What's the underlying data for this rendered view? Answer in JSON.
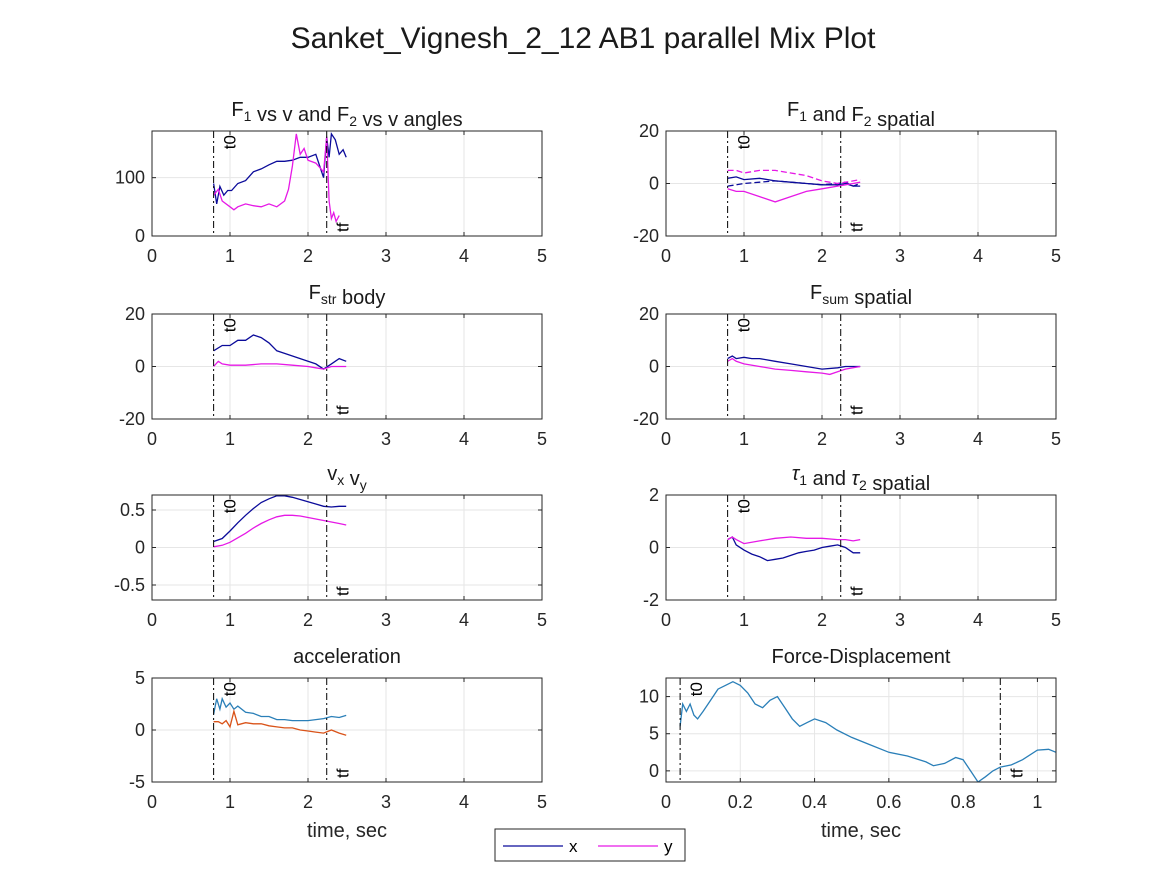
{
  "figure": {
    "title": "Sanket_Vignesh_2_12 AB1 parallel Mix Plot",
    "legend": {
      "placement": "bottom-center",
      "entries": [
        {
          "label": "x",
          "color": "#0b0b9a"
        },
        {
          "label": "y",
          "color": "#e619e6"
        }
      ]
    }
  },
  "chart_data": [
    {
      "type": "line",
      "title_parts": [
        {
          "t": "F"
        },
        {
          "t": "1",
          "sub": true
        },
        {
          "t": " vs v and F"
        },
        {
          "t": "2",
          "sub": true
        },
        {
          "t": " vs v angles"
        }
      ],
      "xlim": [
        0,
        5
      ],
      "ylim": [
        0,
        180
      ],
      "xticks": [
        0,
        1,
        2,
        3,
        4,
        5
      ],
      "yticks": [
        0,
        100
      ],
      "xlabel": "",
      "grid": true,
      "vlines": [
        {
          "x": 0.79,
          "label": "t0",
          "pos": "top"
        },
        {
          "x": 2.24,
          "label": "tf",
          "pos": "bottom"
        }
      ],
      "series": [
        {
          "name": "x",
          "color": "#0b0b9a",
          "x": [
            0.79,
            0.83,
            0.87,
            0.92,
            0.97,
            1.02,
            1.1,
            1.2,
            1.3,
            1.4,
            1.5,
            1.6,
            1.7,
            1.8,
            1.9,
            2.0,
            2.1,
            2.15,
            2.2,
            2.24,
            2.27,
            2.3,
            2.35,
            2.4,
            2.45,
            2.49
          ],
          "y": [
            90,
            55,
            85,
            70,
            78,
            78,
            90,
            95,
            110,
            115,
            122,
            128,
            128,
            130,
            135,
            135,
            140,
            120,
            100,
            170,
            135,
            175,
            165,
            140,
            148,
            135
          ]
        },
        {
          "name": "y",
          "color": "#e619e6",
          "x": [
            0.79,
            0.85,
            0.9,
            1.0,
            1.05,
            1.1,
            1.2,
            1.3,
            1.4,
            1.5,
            1.6,
            1.7,
            1.75,
            1.8,
            1.85,
            1.9,
            1.95,
            2.0,
            2.1,
            2.2,
            2.24,
            2.27,
            2.3,
            2.33,
            2.36,
            2.4
          ],
          "y": [
            70,
            80,
            60,
            50,
            45,
            50,
            55,
            52,
            50,
            55,
            50,
            60,
            80,
            120,
            175,
            140,
            150,
            130,
            125,
            110,
            170,
            60,
            30,
            40,
            25,
            35
          ]
        }
      ]
    },
    {
      "type": "line",
      "title_parts": [
        {
          "t": "F"
        },
        {
          "t": "1",
          "sub": true
        },
        {
          "t": " and F"
        },
        {
          "t": "2",
          "sub": true
        },
        {
          "t": " spatial"
        }
      ],
      "xlim": [
        0,
        5
      ],
      "ylim": [
        -20,
        20
      ],
      "xticks": [
        0,
        1,
        2,
        3,
        4,
        5
      ],
      "yticks": [
        -20,
        0,
        20
      ],
      "xlabel": "",
      "grid": true,
      "vlines": [
        {
          "x": 0.79,
          "label": "t0",
          "pos": "top"
        },
        {
          "x": 2.24,
          "label": "tf",
          "pos": "bottom"
        }
      ],
      "series": [
        {
          "name": "x",
          "color": "#0b0b9a",
          "dash": false,
          "x": [
            0.79,
            0.9,
            1.0,
            1.2,
            1.4,
            1.6,
            1.8,
            2.0,
            2.2,
            2.3,
            2.4,
            2.49
          ],
          "y": [
            2,
            2.5,
            1.5,
            2,
            1,
            0.5,
            0,
            -0.5,
            -0.5,
            0,
            -1,
            -1
          ]
        },
        {
          "name": "",
          "color": "#0b0b9a",
          "dash": true,
          "x": [
            0.79,
            0.9,
            1.0,
            1.2,
            1.4,
            1.6,
            1.8,
            2.0,
            2.2,
            2.3,
            2.4,
            2.49
          ],
          "y": [
            -1,
            -0.5,
            0,
            0.5,
            1,
            0.5,
            0,
            -0.5,
            0,
            0.5,
            -1,
            0
          ]
        },
        {
          "name": "y",
          "color": "#e619e6",
          "dash": false,
          "x": [
            0.79,
            0.9,
            1.0,
            1.2,
            1.4,
            1.6,
            1.8,
            2.0,
            2.2,
            2.3,
            2.4,
            2.49
          ],
          "y": [
            -2,
            -3,
            -3,
            -5,
            -7,
            -5,
            -3,
            -2,
            -1,
            -0.5,
            0,
            0.5
          ]
        },
        {
          "name": "",
          "color": "#e619e6",
          "dash": true,
          "x": [
            0.79,
            0.9,
            1.0,
            1.2,
            1.4,
            1.6,
            1.8,
            2.0,
            2.2,
            2.3,
            2.4,
            2.49
          ],
          "y": [
            5,
            5,
            4,
            5,
            5,
            4,
            3,
            1,
            0,
            0.5,
            1,
            1.5
          ]
        }
      ]
    },
    {
      "type": "line",
      "title_parts": [
        {
          "t": "F"
        },
        {
          "t": "str",
          "sub": true
        },
        {
          "t": " body"
        }
      ],
      "xlim": [
        0,
        5
      ],
      "ylim": [
        -20,
        20
      ],
      "xticks": [
        0,
        1,
        2,
        3,
        4,
        5
      ],
      "yticks": [
        -20,
        0,
        20
      ],
      "xlabel": "",
      "grid": true,
      "vlines": [
        {
          "x": 0.79,
          "label": "t0",
          "pos": "top"
        },
        {
          "x": 2.24,
          "label": "tf",
          "pos": "bottom"
        }
      ],
      "series": [
        {
          "name": "x",
          "color": "#0b0b9a",
          "x": [
            0.79,
            0.9,
            1.0,
            1.1,
            1.2,
            1.3,
            1.4,
            1.5,
            1.6,
            1.7,
            1.8,
            1.9,
            2.0,
            2.1,
            2.2,
            2.3,
            2.4,
            2.49
          ],
          "y": [
            6,
            8,
            8,
            10,
            10,
            12,
            11,
            9,
            6,
            5,
            4,
            3,
            2,
            1,
            -1,
            1,
            3,
            2
          ]
        },
        {
          "name": "y",
          "color": "#e619e6",
          "x": [
            0.79,
            0.85,
            0.9,
            1.0,
            1.2,
            1.4,
            1.6,
            1.8,
            2.0,
            2.1,
            2.2,
            2.3,
            2.49
          ],
          "y": [
            0,
            2,
            1,
            0.5,
            0.5,
            1,
            1,
            0.5,
            0,
            -0.5,
            -1,
            0,
            0
          ]
        }
      ]
    },
    {
      "type": "line",
      "title_parts": [
        {
          "t": "F"
        },
        {
          "t": "sum",
          "sub": true
        },
        {
          "t": " spatial"
        }
      ],
      "xlim": [
        0,
        5
      ],
      "ylim": [
        -20,
        20
      ],
      "xticks": [
        0,
        1,
        2,
        3,
        4,
        5
      ],
      "yticks": [
        -20,
        0,
        20
      ],
      "xlabel": "",
      "grid": true,
      "vlines": [
        {
          "x": 0.79,
          "label": "t0",
          "pos": "top"
        },
        {
          "x": 2.24,
          "label": "tf",
          "pos": "bottom"
        }
      ],
      "series": [
        {
          "name": "x",
          "color": "#0b0b9a",
          "x": [
            0.79,
            0.85,
            0.9,
            1.0,
            1.1,
            1.2,
            1.4,
            1.6,
            1.8,
            2.0,
            2.2,
            2.3,
            2.49
          ],
          "y": [
            3,
            4,
            3,
            3.5,
            3,
            3,
            2,
            1,
            0,
            -1,
            -0.5,
            0,
            0
          ]
        },
        {
          "name": "y",
          "color": "#e619e6",
          "x": [
            0.79,
            0.85,
            0.9,
            1.0,
            1.2,
            1.4,
            1.6,
            1.8,
            2.0,
            2.1,
            2.2,
            2.3,
            2.49
          ],
          "y": [
            2,
            3,
            2,
            1,
            0,
            -1,
            -1.5,
            -2,
            -2.5,
            -3,
            -2,
            -1,
            0
          ]
        }
      ]
    },
    {
      "type": "line",
      "title_parts": [
        {
          "t": "v"
        },
        {
          "t": "x",
          "sub": true
        },
        {
          "t": " v"
        },
        {
          "t": "y",
          "sub": true
        }
      ],
      "xlim": [
        0,
        5
      ],
      "ylim": [
        -0.7,
        0.7
      ],
      "xticks": [
        0,
        1,
        2,
        3,
        4,
        5
      ],
      "yticks": [
        -0.5,
        0,
        0.5
      ],
      "ytickLabels": [
        "-0.5",
        "0",
        "0.5"
      ],
      "xlabel": "",
      "grid": true,
      "vlines": [
        {
          "x": 0.79,
          "label": "t0",
          "pos": "top"
        },
        {
          "x": 2.24,
          "label": "tf",
          "pos": "bottom"
        }
      ],
      "series": [
        {
          "name": "x",
          "color": "#0b0b9a",
          "x": [
            0.79,
            0.9,
            1.0,
            1.1,
            1.2,
            1.3,
            1.4,
            1.5,
            1.6,
            1.7,
            1.8,
            1.9,
            2.0,
            2.1,
            2.2,
            2.3,
            2.4,
            2.49
          ],
          "y": [
            0.08,
            0.12,
            0.22,
            0.33,
            0.43,
            0.52,
            0.6,
            0.65,
            0.69,
            0.69,
            0.67,
            0.64,
            0.61,
            0.58,
            0.55,
            0.54,
            0.55,
            0.55
          ]
        },
        {
          "name": "y",
          "color": "#e619e6",
          "x": [
            0.79,
            0.9,
            1.0,
            1.1,
            1.2,
            1.3,
            1.4,
            1.5,
            1.6,
            1.7,
            1.8,
            1.9,
            2.0,
            2.1,
            2.2,
            2.3,
            2.4,
            2.49
          ],
          "y": [
            0.01,
            0.03,
            0.07,
            0.13,
            0.19,
            0.26,
            0.32,
            0.37,
            0.41,
            0.43,
            0.43,
            0.42,
            0.4,
            0.38,
            0.36,
            0.34,
            0.32,
            0.3
          ]
        }
      ]
    },
    {
      "type": "line",
      "title_parts": [
        {
          "t": "τ",
          "italic": true
        },
        {
          "t": "1",
          "sub": true
        },
        {
          "t": " and "
        },
        {
          "t": "τ",
          "italic": true
        },
        {
          "t": "2",
          "sub": true
        },
        {
          "t": " spatial"
        }
      ],
      "xlim": [
        0,
        5
      ],
      "ylim": [
        -2,
        2
      ],
      "xticks": [
        0,
        1,
        2,
        3,
        4,
        5
      ],
      "yticks": [
        -2,
        0,
        2
      ],
      "xlabel": "",
      "grid": true,
      "vlines": [
        {
          "x": 0.79,
          "label": "t0",
          "pos": "top"
        },
        {
          "x": 2.24,
          "label": "tf",
          "pos": "bottom"
        }
      ],
      "series": [
        {
          "name": "x",
          "color": "#0b0b9a",
          "x": [
            0.79,
            0.85,
            0.9,
            1.0,
            1.1,
            1.2,
            1.3,
            1.4,
            1.5,
            1.6,
            1.7,
            1.8,
            1.9,
            2.0,
            2.1,
            2.2,
            2.3,
            2.4,
            2.49
          ],
          "y": [
            0.3,
            0.4,
            0.1,
            -0.1,
            -0.25,
            -0.35,
            -0.5,
            -0.45,
            -0.4,
            -0.3,
            -0.2,
            -0.15,
            -0.1,
            0,
            0.05,
            0.1,
            0,
            -0.2,
            -0.2
          ]
        },
        {
          "name": "y",
          "color": "#e619e6",
          "x": [
            0.79,
            0.85,
            0.9,
            1.0,
            1.2,
            1.4,
            1.6,
            1.8,
            2.0,
            2.2,
            2.3,
            2.4,
            2.49
          ],
          "y": [
            0.3,
            0.4,
            0.3,
            0.15,
            0.25,
            0.35,
            0.4,
            0.35,
            0.35,
            0.3,
            0.3,
            0.25,
            0.3
          ]
        }
      ]
    },
    {
      "type": "line",
      "title_parts": [
        {
          "t": "acceleration"
        }
      ],
      "xlim": [
        0,
        5
      ],
      "ylim": [
        -5,
        5
      ],
      "xticks": [
        0,
        1,
        2,
        3,
        4,
        5
      ],
      "yticks": [
        -5,
        0,
        5
      ],
      "xlabel": "time, sec",
      "grid": true,
      "vlines": [
        {
          "x": 0.79,
          "label": "t0",
          "pos": "top"
        },
        {
          "x": 2.24,
          "label": "tf",
          "pos": "bottom"
        }
      ],
      "series": [
        {
          "name": "",
          "color": "#2a7fb8",
          "x": [
            0.79,
            0.83,
            0.87,
            0.9,
            0.95,
            1.0,
            1.05,
            1.1,
            1.2,
            1.3,
            1.4,
            1.5,
            1.6,
            1.7,
            1.8,
            1.9,
            2.0,
            2.1,
            2.2,
            2.3,
            2.4,
            2.49
          ],
          "y": [
            1.5,
            3,
            2,
            3,
            2.2,
            2.6,
            2,
            2.3,
            1.7,
            1.6,
            1.3,
            1.3,
            1,
            1,
            0.9,
            0.9,
            0.9,
            1,
            1.1,
            1.3,
            1.2,
            1.4
          ]
        },
        {
          "name": "",
          "color": "#d95319",
          "x": [
            0.79,
            0.85,
            0.9,
            0.95,
            1.0,
            1.05,
            1.1,
            1.2,
            1.3,
            1.4,
            1.5,
            1.6,
            1.7,
            1.8,
            1.9,
            2.0,
            2.1,
            2.2,
            2.3,
            2.4,
            2.49
          ],
          "y": [
            0.8,
            0.8,
            0.6,
            0.9,
            0.3,
            1.8,
            0.5,
            0.7,
            0.6,
            0.6,
            0.4,
            0.3,
            0.2,
            0.2,
            0,
            -0.1,
            -0.2,
            -0.3,
            0,
            -0.3,
            -0.5
          ]
        }
      ]
    },
    {
      "type": "line",
      "title_parts": [
        {
          "t": "Force-Displacement"
        }
      ],
      "xlim": [
        0,
        1.05
      ],
      "ylim": [
        -1.5,
        12.5
      ],
      "xticks": [
        0,
        0.2,
        0.4,
        0.6,
        0.8,
        1
      ],
      "xtickLabels": [
        "0",
        "0.2",
        "0.4",
        "0.6",
        "0.8",
        "1"
      ],
      "yticks": [
        0,
        5,
        10
      ],
      "xlabel": "time, sec",
      "grid": true,
      "vlines": [
        {
          "x": 0.038,
          "label": "t0",
          "pos": "top"
        },
        {
          "x": 0.9,
          "label": "tf",
          "pos": "bottom"
        }
      ],
      "series": [
        {
          "name": "",
          "color": "#2a7fb8",
          "x": [
            0.038,
            0.045,
            0.055,
            0.065,
            0.075,
            0.085,
            0.1,
            0.12,
            0.14,
            0.16,
            0.18,
            0.2,
            0.22,
            0.24,
            0.26,
            0.28,
            0.3,
            0.32,
            0.34,
            0.36,
            0.38,
            0.4,
            0.43,
            0.46,
            0.5,
            0.55,
            0.6,
            0.65,
            0.7,
            0.72,
            0.75,
            0.78,
            0.8,
            0.82,
            0.84,
            0.86,
            0.88,
            0.9,
            0.93,
            0.96,
            1.0,
            1.03,
            1.05
          ],
          "y": [
            6,
            9,
            8,
            9,
            7.5,
            7,
            8,
            9.5,
            11,
            11.5,
            12,
            11.5,
            10.5,
            9,
            8.5,
            9.5,
            10,
            8.5,
            7,
            6,
            6.5,
            7,
            6.5,
            5.5,
            4.5,
            3.5,
            2.5,
            2,
            1.2,
            0.7,
            1,
            1.8,
            1.5,
            0,
            -1.5,
            -0.8,
            0,
            0.5,
            0.8,
            1.5,
            2.8,
            2.9,
            2.5
          ]
        }
      ]
    }
  ]
}
